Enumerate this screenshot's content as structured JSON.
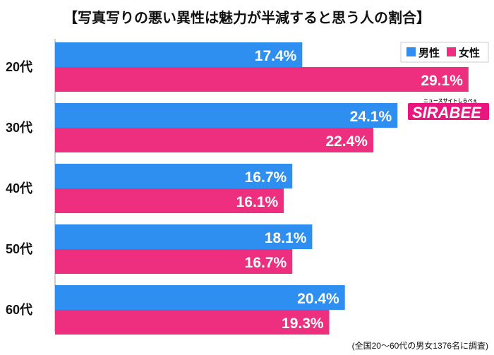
{
  "chart_data": {
    "type": "bar",
    "orientation": "horizontal",
    "title": "【写真写りの悪い異性は魅力が半減すると思う人の割合】",
    "categories": [
      "20代",
      "30代",
      "40代",
      "50代",
      "60代"
    ],
    "series": [
      {
        "name": "男性",
        "color": "#2e8ff0",
        "values": [
          17.4,
          24.1,
          16.7,
          18.1,
          20.4
        ],
        "labels": [
          "17.4%",
          "24.1%",
          "16.7%",
          "18.1%",
          "20.4%"
        ]
      },
      {
        "name": "女性",
        "color": "#ee2f7f",
        "values": [
          29.1,
          22.4,
          16.1,
          16.7,
          19.3
        ],
        "labels": [
          "29.1%",
          "22.4%",
          "16.1%",
          "16.7%",
          "19.3%"
        ]
      }
    ],
    "unit": "%",
    "xlim": [
      0,
      30
    ],
    "grid": false,
    "legend": "top-right",
    "note": "(全国20〜60代の男女1376名に調査)"
  },
  "logo": {
    "main": "SIRABEE",
    "sub": "ニュースサイトしらべぇ",
    "color": "#e8177f"
  }
}
